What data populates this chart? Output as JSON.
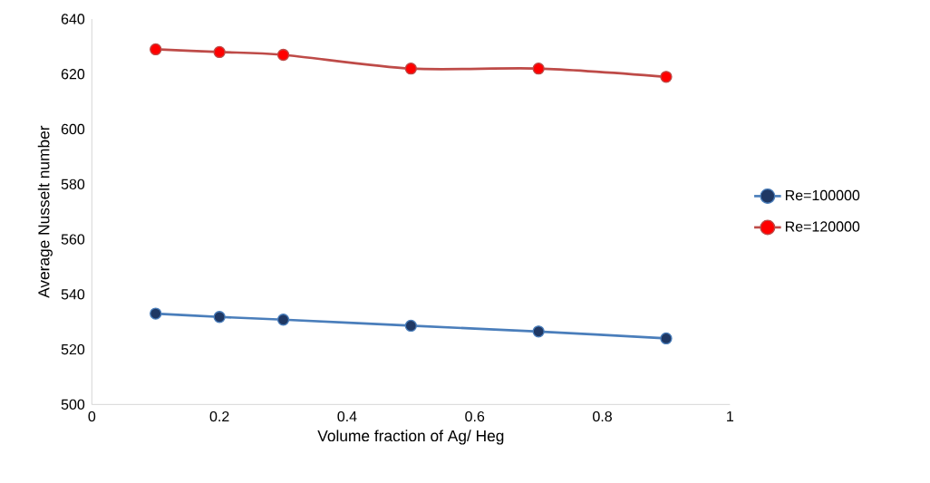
{
  "chart_data": {
    "type": "line",
    "xlabel": "Volume fraction of Ag/ Heg",
    "ylabel": "Average Nusselt number",
    "x": [
      0.1,
      0.2,
      0.3,
      0.5,
      0.7,
      0.9
    ],
    "series": [
      {
        "name": "Re=100000",
        "color": "#4a7ebb",
        "values": [
          533,
          531.8,
          530.8,
          528.6,
          526.5,
          524
        ]
      },
      {
        "name": "Re=120000",
        "color": "#be4b48",
        "values": [
          629,
          628,
          627,
          622,
          622,
          619
        ]
      }
    ],
    "xlim": [
      0,
      1
    ],
    "xticks": [
      0,
      0.2,
      0.4,
      0.6,
      0.8,
      1
    ],
    "ylim": [
      500,
      640
    ],
    "yticks": [
      500,
      520,
      540,
      560,
      580,
      600,
      620,
      640
    ],
    "marker": "circle",
    "line_style": "solid",
    "grid": false,
    "legend": "right"
  }
}
